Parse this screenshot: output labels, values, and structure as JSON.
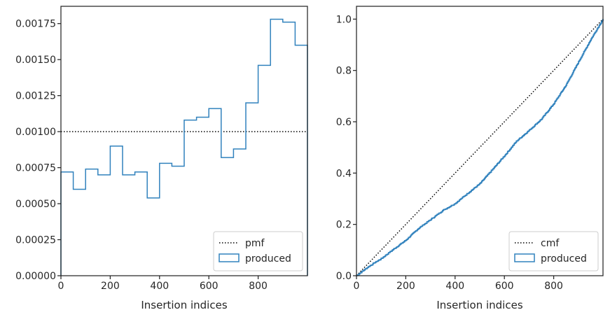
{
  "chart_data": [
    {
      "type": "histogram-step",
      "title": "",
      "xlabel": "Insertion indices",
      "ylabel": "",
      "xlim": [
        0,
        1000
      ],
      "ylim": [
        0,
        0.00187
      ],
      "xticks": [
        0,
        200,
        400,
        600,
        800
      ],
      "xtick_labels": [
        "0",
        "200",
        "400",
        "600",
        "800"
      ],
      "yticks": [
        0,
        0.00025,
        0.0005,
        0.00075,
        0.001,
        0.00125,
        0.0015,
        0.00175
      ],
      "ytick_labels": [
        "0.00000",
        "0.00025",
        "0.00050",
        "0.00075",
        "0.00100",
        "0.00125",
        "0.00150",
        "0.00175"
      ],
      "grid": false,
      "legend_position": "lower-right",
      "legend": [
        "pmf",
        "produced"
      ],
      "series": [
        {
          "name": "pmf",
          "style": "dotted",
          "color": "#000000",
          "x": [
            0,
            1000
          ],
          "y": [
            0.001,
            0.001
          ]
        },
        {
          "name": "produced",
          "style": "step",
          "color": "#3182bd",
          "bin_edges": [
            0,
            50,
            100,
            150,
            200,
            250,
            300,
            350,
            400,
            450,
            500,
            550,
            600,
            650,
            700,
            750,
            800,
            850,
            900,
            950,
            1000
          ],
          "values": [
            0.00072,
            0.0006,
            0.00074,
            0.0007,
            0.0009,
            0.0007,
            0.00072,
            0.00054,
            0.00078,
            0.00076,
            0.00108,
            0.0011,
            0.00116,
            0.00082,
            0.00088,
            0.0012,
            0.00146,
            0.00178,
            0.00176,
            0.0016
          ]
        }
      ]
    },
    {
      "type": "line",
      "title": "",
      "xlabel": "Insertion indices",
      "ylabel": "",
      "xlim": [
        0,
        1000
      ],
      "ylim": [
        0,
        1.05
      ],
      "xticks": [
        0,
        200,
        400,
        600,
        800
      ],
      "xtick_labels": [
        "0",
        "200",
        "400",
        "600",
        "800"
      ],
      "yticks": [
        0,
        0.2,
        0.4,
        0.6,
        0.8,
        1.0
      ],
      "ytick_labels": [
        "0.0",
        "0.2",
        "0.4",
        "0.6",
        "0.8",
        "1.0"
      ],
      "grid": false,
      "legend_position": "lower-right",
      "legend": [
        "cmf",
        "produced"
      ],
      "series": [
        {
          "name": "cmf",
          "style": "dotted",
          "color": "#000000",
          "x": [
            0,
            1000
          ],
          "y": [
            0,
            1
          ]
        },
        {
          "name": "produced",
          "style": "step",
          "color": "#3182bd",
          "x": [
            0,
            50,
            100,
            150,
            200,
            250,
            300,
            350,
            400,
            450,
            500,
            550,
            600,
            650,
            700,
            750,
            800,
            850,
            900,
            950,
            1000
          ],
          "y": [
            0,
            0.036,
            0.066,
            0.103,
            0.138,
            0.183,
            0.218,
            0.254,
            0.281,
            0.32,
            0.358,
            0.412,
            0.467,
            0.525,
            0.566,
            0.61,
            0.67,
            0.743,
            0.832,
            0.92,
            1.0
          ]
        }
      ]
    }
  ]
}
